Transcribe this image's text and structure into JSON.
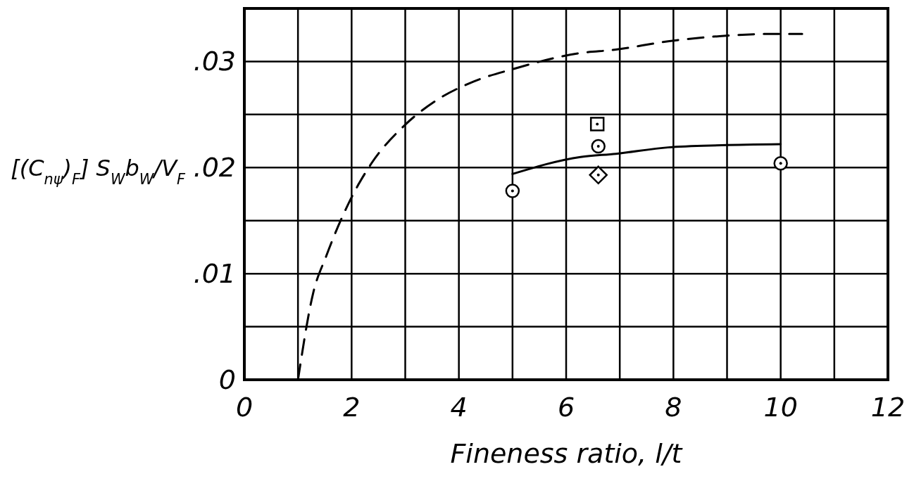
{
  "chart_data": {
    "type": "line",
    "xlabel": "Fineness ratio, l/t",
    "ylabel": "[(C$_{nψ}$)$_{F}$] S$_{W}$b$_{W}$/V$_{F}$",
    "xlim": [
      0,
      12
    ],
    "ylim": [
      0,
      0.035
    ],
    "xticks": [
      0,
      {
        "value": 1,
        "label": null
      },
      2,
      {
        "value": 3,
        "label": null
      },
      4,
      {
        "value": 5,
        "label": null
      },
      6,
      {
        "value": 7,
        "label": null
      },
      8,
      {
        "value": 9,
        "label": null
      },
      10,
      {
        "value": 11,
        "label": null
      },
      12
    ],
    "yticks": [
      {
        "value": 0,
        "label": "0"
      },
      {
        "value": 0.005,
        "label": null
      },
      {
        "value": 0.01,
        "label": ".01"
      },
      {
        "value": 0.015,
        "label": null
      },
      {
        "value": 0.02,
        "label": ".02"
      },
      {
        "value": 0.025,
        "label": null
      },
      {
        "value": 0.03,
        "label": ".03"
      },
      {
        "value": 0.035,
        "label": null
      }
    ],
    "grid": true,
    "series": [
      {
        "color": "#000000",
        "line_style": "dashed",
        "marker": "none",
        "x": [
          1.0,
          1.28,
          1.53,
          1.97,
          2.37,
          2.97,
          3.57,
          4.27,
          5.02,
          6.27,
          6.9,
          7.9,
          8.9,
          9.9,
          10.4
        ],
        "values": [
          0.0,
          0.0081,
          0.0117,
          0.0169,
          0.0204,
          0.0239,
          0.0263,
          0.0281,
          0.0293,
          0.0308,
          0.0311,
          0.0319,
          0.0324,
          0.0326,
          0.0326
        ]
      },
      {
        "color": "#000000",
        "line_style": "solid",
        "marker": "none",
        "x": [
          5.0,
          6.27,
          6.93,
          7.9,
          8.9,
          10.0
        ],
        "values": [
          0.0194,
          0.021,
          0.0213,
          0.0219,
          0.0221,
          0.0222
        ]
      },
      {
        "type": "scatter",
        "color": "#000000",
        "marker": "circle",
        "x": [
          5.0,
          6.6,
          10.0
        ],
        "values": [
          0.0178,
          0.022,
          0.0204
        ]
      },
      {
        "type": "scatter",
        "color": "#000000",
        "marker": "square",
        "x": [
          6.58
        ],
        "values": [
          0.0241
        ]
      },
      {
        "type": "scatter",
        "color": "#000000",
        "marker": "diamond",
        "x": [
          6.6
        ],
        "values": [
          0.0193
        ]
      }
    ]
  }
}
